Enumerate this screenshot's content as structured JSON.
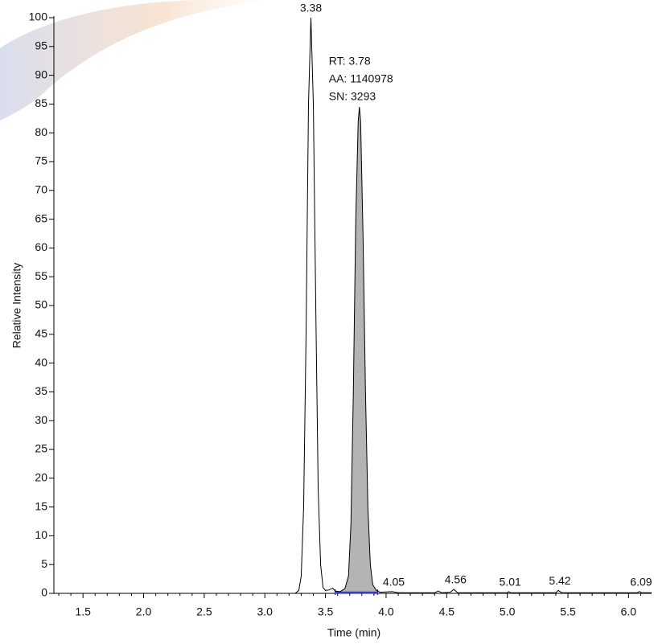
{
  "chart_data": {
    "type": "line",
    "xlabel": "Time (min)",
    "ylabel": "Relative Intensity",
    "x": [
      1.26,
      3.25,
      3.28,
      3.3,
      3.32,
      3.34,
      3.36,
      3.38,
      3.4,
      3.42,
      3.44,
      3.46,
      3.48,
      3.5,
      3.53,
      3.56,
      3.58,
      3.62,
      3.66,
      3.69,
      3.71,
      3.73,
      3.75,
      3.77,
      3.78,
      3.79,
      3.81,
      3.83,
      3.85,
      3.87,
      3.89,
      3.92,
      3.95,
      4.05,
      4.1,
      4.4,
      4.43,
      4.46,
      4.53,
      4.56,
      4.59,
      5.0,
      5.01,
      5.03,
      5.4,
      5.42,
      5.45,
      6.07,
      6.09,
      6.11,
      6.19
    ],
    "series": [
      {
        "color": "#000000",
        "values": [
          0,
          0,
          0.5,
          3,
          15,
          45,
          85,
          100,
          85,
          50,
          18,
          5,
          1,
          0.5,
          0.6,
          0.9,
          0.4,
          0.3,
          0.8,
          3,
          12,
          35,
          65,
          82,
          84.5,
          82,
          62,
          35,
          15,
          5,
          1.5,
          0.5,
          0.2,
          0.3,
          0.1,
          0.1,
          0.4,
          0.1,
          0.2,
          0.7,
          0.1,
          0.1,
          0.3,
          0.1,
          0.1,
          0.5,
          0.1,
          0.1,
          0.3,
          0.1,
          0.1
        ]
      }
    ],
    "area": {
      "color": "#b4b4b4",
      "x": [
        3.58,
        3.62,
        3.66,
        3.69,
        3.71,
        3.73,
        3.75,
        3.77,
        3.78,
        3.79,
        3.81,
        3.83,
        3.85,
        3.87,
        3.89,
        3.92
      ],
      "values": [
        0.4,
        0.3,
        0.8,
        3,
        12,
        35,
        65,
        82,
        84.5,
        82,
        62,
        35,
        15,
        5,
        1.5,
        0.5
      ]
    },
    "baseline": {
      "color": "#3a3ac8",
      "x": [
        3.58,
        3.93
      ]
    },
    "peaks": [
      {
        "x": 3.38,
        "y": 100
      },
      {
        "x": 4.05,
        "y": 0.3
      },
      {
        "x": 4.56,
        "y": 0.7
      },
      {
        "x": 5.01,
        "y": 0.3
      },
      {
        "x": 5.42,
        "y": 0.5
      },
      {
        "x": 6.09,
        "y": 0.3
      }
    ],
    "annotation": {
      "x": 3.78,
      "y": 84.5,
      "lines": [
        "RT: 3.78",
        "AA: 1140978",
        "SN: 3293"
      ]
    },
    "xlim": [
      1.26,
      6.19
    ],
    "ylim": [
      0,
      100
    ],
    "xticks": [
      1.5,
      {
        "value": 2,
        "label": "2.0"
      },
      2.5,
      {
        "value": 3,
        "label": "3.0"
      },
      3.5,
      {
        "value": 4,
        "label": "4.0"
      },
      4.5,
      {
        "value": 5,
        "label": "5.0"
      },
      5.5,
      {
        "value": 6,
        "label": "6.0"
      }
    ],
    "x_minor_ticks": [
      1.3,
      1.4,
      1.6,
      1.7,
      1.8,
      1.9,
      2.1,
      2.2,
      2.3,
      2.4,
      2.6,
      2.7,
      2.8,
      2.9,
      3.1,
      3.2,
      3.3,
      3.4,
      3.6,
      3.7,
      3.8,
      3.9,
      4.1,
      4.2,
      4.3,
      4.4,
      4.6,
      4.7,
      4.8,
      4.9,
      5.1,
      5.2,
      5.3,
      5.4,
      5.6,
      5.7,
      5.8,
      5.9,
      6.1
    ],
    "yticks": [
      0,
      5,
      10,
      15,
      20,
      25,
      30,
      35,
      40,
      45,
      50,
      55,
      60,
      65,
      70,
      75,
      80,
      85,
      90,
      95,
      100
    ]
  }
}
